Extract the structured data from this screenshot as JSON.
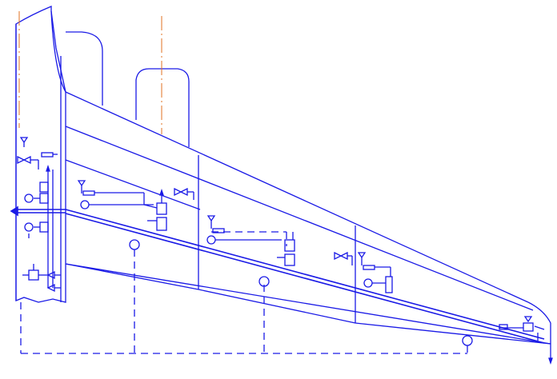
{
  "diagram": {
    "type": "aircraft-wing-fuel-system-schematic",
    "colors": {
      "line": "#1a1ae6",
      "centerline": "#e07020",
      "background": "#ffffff"
    },
    "labels": []
  }
}
